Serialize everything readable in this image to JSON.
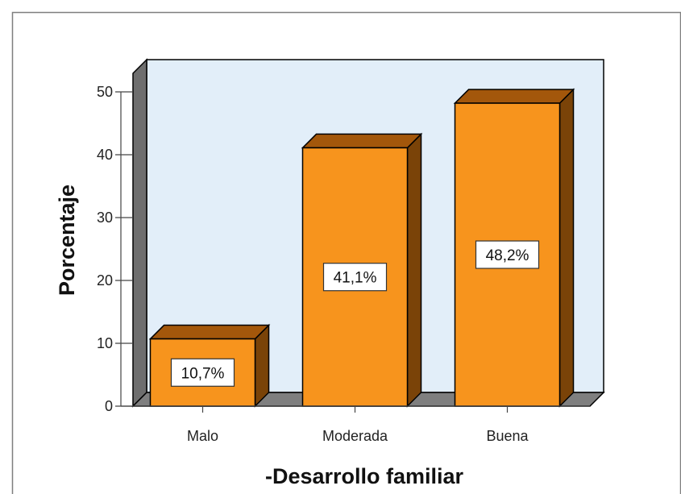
{
  "chart_data": {
    "type": "bar",
    "categories": [
      "Malo",
      "Moderada",
      "Buena"
    ],
    "values": [
      10.7,
      41.1,
      48.2
    ],
    "data_labels": [
      "10,7%",
      "41,1%",
      "48,2%"
    ],
    "xlabel": "-Desarrollo familiar",
    "ylabel": "Porcentaje",
    "ylim": [
      0,
      50
    ],
    "yticks": [
      0,
      10,
      20,
      30,
      40,
      50
    ],
    "grid": false,
    "style": "3d",
    "colors": {
      "bar_front": "#F7941D",
      "bar_top": "#A3570B",
      "bar_side": "#7A4308",
      "plot_background": "#E2EEF9",
      "floor": "#7F7F7F",
      "left_wall": "#6E6E6E",
      "frame_border": "#7F7F7F"
    }
  }
}
